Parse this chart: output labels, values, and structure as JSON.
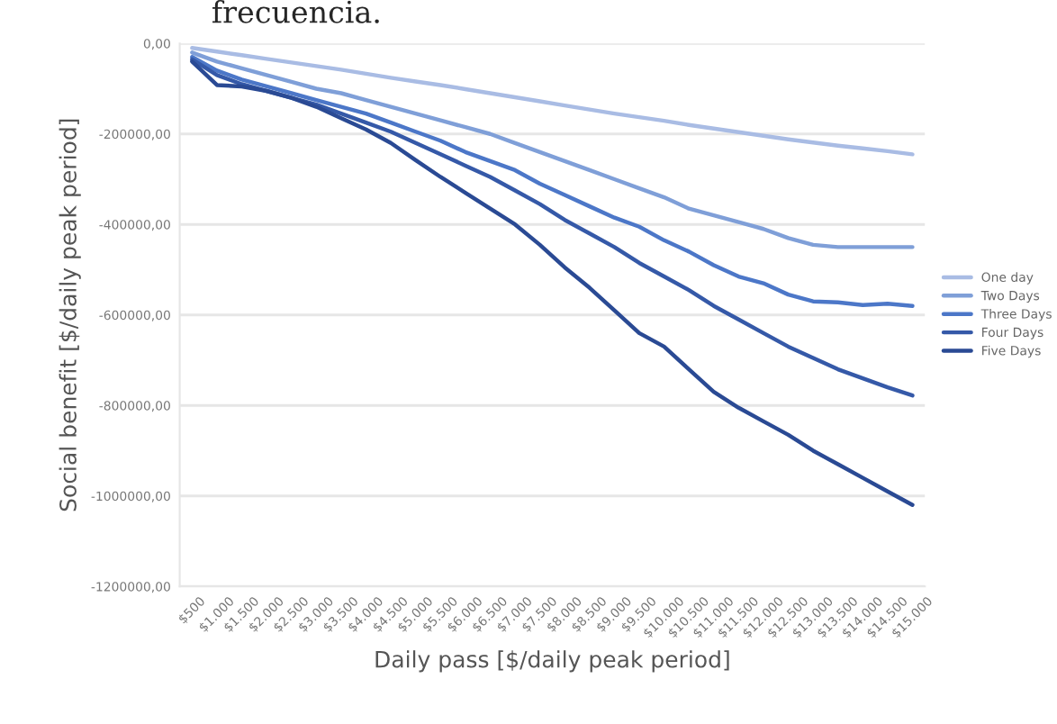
{
  "chart_data": {
    "type": "line",
    "xlabel": "Daily pass [$/daily peak period]",
    "ylabel": "Social benefit [$/daily peak period]",
    "annotations": [
      "frecuencia."
    ],
    "categories": [
      "$500",
      "$1.000",
      "$1.500",
      "$2.000",
      "$2.500",
      "$3.000",
      "$3.500",
      "$4.000",
      "$4.500",
      "$5.000",
      "$5.500",
      "$6.000",
      "$6.500",
      "$7.000",
      "$7.500",
      "$8.000",
      "$8.500",
      "$9.000",
      "$9.500",
      "$10.000",
      "$10.500",
      "$11.000",
      "$11.500",
      "$12.000",
      "$12.500",
      "$13.000",
      "$13.500",
      "$14.000",
      "$14.500",
      "$15.000"
    ],
    "series": [
      {
        "name": "One day",
        "color": "#a9bce4",
        "values": [
          -10000,
          -18000,
          -26000,
          -34000,
          -42000,
          -50000,
          -58000,
          -67000,
          -76000,
          -84000,
          -92000,
          -101000,
          -110000,
          -119000,
          -128000,
          -137000,
          -146000,
          -155000,
          -163000,
          -171000,
          -180000,
          -188000,
          -196000,
          -204000,
          -212000,
          -219000,
          -226000,
          -232000,
          -238000,
          -245000
        ]
      },
      {
        "name": "Two Days",
        "color": "#7f9fd8",
        "values": [
          -20000,
          -40000,
          -55000,
          -70000,
          -85000,
          -100000,
          -110000,
          -125000,
          -140000,
          -155000,
          -170000,
          -185000,
          -200000,
          -220000,
          -240000,
          -260000,
          -280000,
          -300000,
          -320000,
          -340000,
          -365000,
          -380000,
          -395000,
          -410000,
          -430000,
          -445000,
          -450000,
          -450000,
          -450000,
          -450000
        ]
      },
      {
        "name": "Three Days",
        "color": "#4c77c8",
        "values": [
          -30000,
          -60000,
          -80000,
          -95000,
          -110000,
          -125000,
          -140000,
          -155000,
          -175000,
          -195000,
          -215000,
          -240000,
          -260000,
          -280000,
          -310000,
          -335000,
          -360000,
          -385000,
          -405000,
          -435000,
          -460000,
          -490000,
          -515000,
          -530000,
          -555000,
          -570000,
          -572000,
          -578000,
          -575000,
          -580000
        ]
      },
      {
        "name": "Four Days",
        "color": "#3559a8",
        "values": [
          -35000,
          -70000,
          -90000,
          -105000,
          -120000,
          -135000,
          -155000,
          -175000,
          -195000,
          -220000,
          -245000,
          -270000,
          -295000,
          -325000,
          -355000,
          -390000,
          -420000,
          -450000,
          -485000,
          -515000,
          -545000,
          -580000,
          -610000,
          -640000,
          -670000,
          -695000,
          -720000,
          -740000,
          -760000,
          -778000
        ]
      },
      {
        "name": "Five Days",
        "color": "#2a4a94",
        "values": [
          -40000,
          -92000,
          -95000,
          -105000,
          -120000,
          -140000,
          -165000,
          -190000,
          -220000,
          -258000,
          -295000,
          -330000,
          -365000,
          -400000,
          -445000,
          -495000,
          -540000,
          -590000,
          -640000,
          -670000,
          -720000,
          -770000,
          -805000,
          -835000,
          -865000,
          -900000,
          -930000,
          -960000,
          -990000,
          -1020000
        ]
      }
    ],
    "ylim": [
      -1200000,
      0
    ],
    "yticks": [
      {
        "value": 0,
        "label": "0,00"
      },
      {
        "value": -200000,
        "label": "-200000,00"
      },
      {
        "value": -400000,
        "label": "-400000,00"
      },
      {
        "value": -600000,
        "label": "-600000,00"
      },
      {
        "value": -800000,
        "label": "-800000,00"
      },
      {
        "value": -1000000,
        "label": "-1000000,00"
      },
      {
        "value": -1200000,
        "label": "-1200000,00"
      }
    ],
    "grid": "y",
    "legend": "right",
    "marker": "none",
    "line_style": "solid"
  }
}
